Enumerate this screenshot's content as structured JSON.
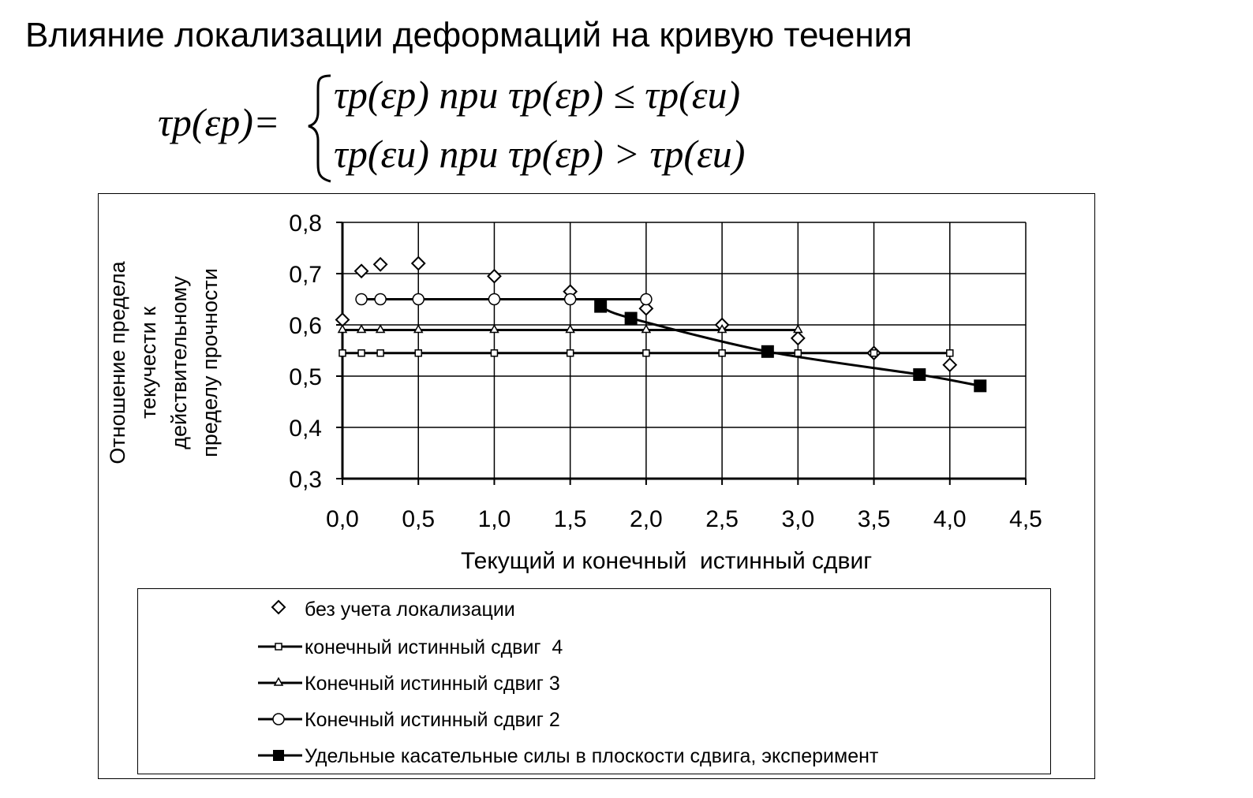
{
  "title": "Влияние локализации деформаций на кривую течения",
  "formula": {
    "lhs": "τp(εp)=",
    "case1": "τp(εp) при τp(εp) ≤ τp(εu)",
    "case2": "τp(εu) при τp(εp) > τp(εu)"
  },
  "chart_data": {
    "type": "scatter",
    "xlabel": "Текущий и конечный  истинный сдвиг",
    "ylabel_lines": [
      "Отношение предела",
      "текучести к",
      "действительному",
      "пределу прочности"
    ],
    "xlim": [
      0.0,
      4.5
    ],
    "ylim": [
      0.3,
      0.8
    ],
    "x_ticks": [
      "0,0",
      "0,5",
      "1,0",
      "1,5",
      "2,0",
      "2,5",
      "3,0",
      "3,5",
      "4,0",
      "4,5"
    ],
    "y_ticks": [
      "0,3",
      "0,4",
      "0,5",
      "0,6",
      "0,7",
      "0,8"
    ],
    "grid": true,
    "legend_position": "bottom",
    "series": [
      {
        "name": "без учета локализации",
        "marker": "diamond",
        "line": false,
        "x": [
          0.0,
          0.125,
          0.25,
          0.5,
          1.0,
          1.5,
          2.0,
          2.5,
          3.0,
          3.5,
          4.0
        ],
        "y": [
          0.61,
          0.705,
          0.718,
          0.72,
          0.695,
          0.665,
          0.632,
          0.6,
          0.574,
          0.545,
          0.522
        ]
      },
      {
        "name": "конечный истинный сдвиг  4",
        "marker": "square-open",
        "line": true,
        "x": [
          0.0,
          0.125,
          0.25,
          0.5,
          1.0,
          1.5,
          2.0,
          2.5,
          3.0,
          3.5,
          4.0
        ],
        "y": [
          0.545,
          0.545,
          0.545,
          0.545,
          0.545,
          0.545,
          0.545,
          0.545,
          0.545,
          0.545,
          0.545
        ]
      },
      {
        "name": "Конечный истинный сдвиг 3",
        "marker": "triangle",
        "line": true,
        "x": [
          0.0,
          0.125,
          0.25,
          0.5,
          1.0,
          1.5,
          2.0,
          2.5,
          3.0
        ],
        "y": [
          0.59,
          0.59,
          0.59,
          0.59,
          0.59,
          0.59,
          0.59,
          0.59,
          0.59
        ]
      },
      {
        "name": "Конечный истинный сдвиг 2",
        "marker": "circle",
        "line": true,
        "x": [
          0.125,
          0.25,
          0.5,
          1.0,
          1.5,
          2.0
        ],
        "y": [
          0.65,
          0.65,
          0.65,
          0.65,
          0.65,
          0.65
        ]
      },
      {
        "name": "Удельные касательные силы в плоскости сдвига, эксперимент",
        "marker": "square-filled",
        "line": true,
        "x": [
          1.7,
          1.9,
          2.8,
          3.8,
          4.2
        ],
        "y": [
          0.636,
          0.613,
          0.548,
          0.503,
          0.481
        ]
      }
    ]
  }
}
